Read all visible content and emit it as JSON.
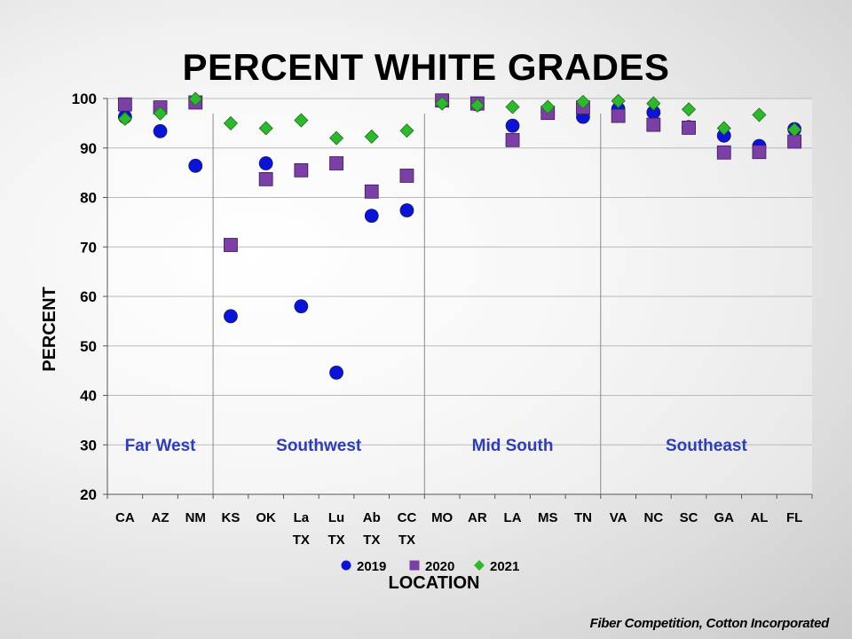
{
  "chart_data": {
    "type": "scatter",
    "title": "PERCENT WHITE GRADES",
    "xlabel": "LOCATION",
    "ylabel": "PERCENT",
    "ylim": [
      20,
      100
    ],
    "yticks": [
      "20",
      "30",
      "40",
      "50",
      "60",
      "70",
      "80",
      "90",
      "100"
    ],
    "grid": true,
    "legend_position": "bottom",
    "categories": [
      [
        "CA"
      ],
      [
        "AZ"
      ],
      [
        "NM"
      ],
      [
        "KS"
      ],
      [
        "OK"
      ],
      [
        "La",
        "TX"
      ],
      [
        "Lu",
        "TX"
      ],
      [
        "Ab",
        "TX"
      ],
      [
        "CC",
        "TX"
      ],
      [
        "MO"
      ],
      [
        "AR"
      ],
      [
        "LA"
      ],
      [
        "MS"
      ],
      [
        "TN"
      ],
      [
        "VA"
      ],
      [
        "NC"
      ],
      [
        "SC"
      ],
      [
        "GA"
      ],
      [
        "AL"
      ],
      [
        "FL"
      ]
    ],
    "regions": [
      {
        "label": "Far West",
        "start": 0,
        "end": 2
      },
      {
        "label": "Southwest",
        "start": 3,
        "end": 8
      },
      {
        "label": "Mid South",
        "start": 9,
        "end": 13
      },
      {
        "label": "Southeast",
        "start": 14,
        "end": 19
      }
    ],
    "series": [
      {
        "name": "2019",
        "marker": "circle",
        "color": "#0a14d6",
        "values": [
          96.3,
          93.4,
          86.4,
          56.0,
          86.9,
          58.0,
          44.6,
          76.3,
          77.4,
          99.4,
          98.8,
          94.5,
          97.3,
          96.3,
          97.9,
          97.2,
          94.2,
          92.5,
          90.4,
          93.8
        ]
      },
      {
        "name": "2020",
        "marker": "square",
        "color": "#7b3fa6",
        "values": [
          98.8,
          98.2,
          99.2,
          70.4,
          83.7,
          85.5,
          86.9,
          81.2,
          84.4,
          99.6,
          99.0,
          91.6,
          97.1,
          98.2,
          96.5,
          94.7,
          94.1,
          89.1,
          89.2,
          91.3
        ]
      },
      {
        "name": "2021",
        "marker": "diamond",
        "color": "#2db82d",
        "values": [
          95.9,
          97.0,
          99.9,
          95.0,
          94.0,
          95.6,
          92.0,
          92.3,
          93.5,
          99.0,
          98.6,
          98.3,
          98.3,
          99.3,
          99.5,
          99.0,
          97.8,
          94.0,
          96.7,
          93.7
        ]
      }
    ]
  },
  "source": "Fiber Competition, Cotton Incorporated"
}
